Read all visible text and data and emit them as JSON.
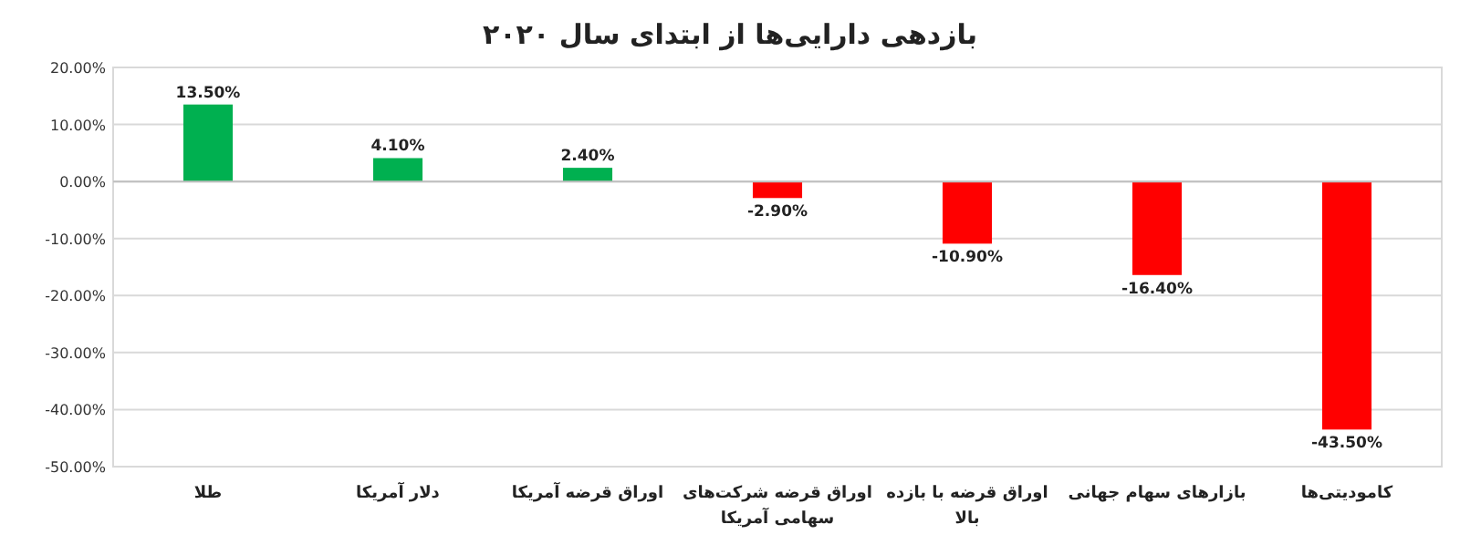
{
  "chart_data": {
    "type": "bar",
    "title": "بازدهی دارایی‌ها از ابتدای سال ۲۰۲۰",
    "categories": [
      "طلا",
      "دلار آمریکا",
      "اوراق قرضه آمریکا",
      "اوراق قرضه شرکت‌های سهامی آمریکا",
      "اوراق قرضه با بازده بالا",
      "بازارهای سهام جهانی",
      "کامودیتی‌ها"
    ],
    "values": [
      13.5,
      4.1,
      2.4,
      -2.9,
      -10.9,
      -16.4,
      -43.5
    ],
    "colors": [
      "#00b050",
      "#00b050",
      "#00b050",
      "#ff0000",
      "#ff0000",
      "#ff0000",
      "#ff0000"
    ],
    "value_labels": [
      "13.50%",
      "4.10%",
      "2.40%",
      "-2.90%",
      "-10.90%",
      "-16.40%",
      "-43.50%"
    ],
    "ylim": [
      -50,
      20
    ],
    "yticks": [
      {
        "value": 20,
        "label": "20.00%"
      },
      {
        "value": 10,
        "label": "10.00%"
      },
      {
        "value": 0,
        "label": "0.00%"
      },
      {
        "value": -10,
        "label": "-10.00%"
      },
      {
        "value": -20,
        "label": "-20.00%"
      },
      {
        "value": -30,
        "label": "-30.00%"
      },
      {
        "value": -40,
        "label": "-40.00%"
      },
      {
        "value": -50,
        "label": "-50.00%"
      }
    ],
    "grid": "y"
  }
}
